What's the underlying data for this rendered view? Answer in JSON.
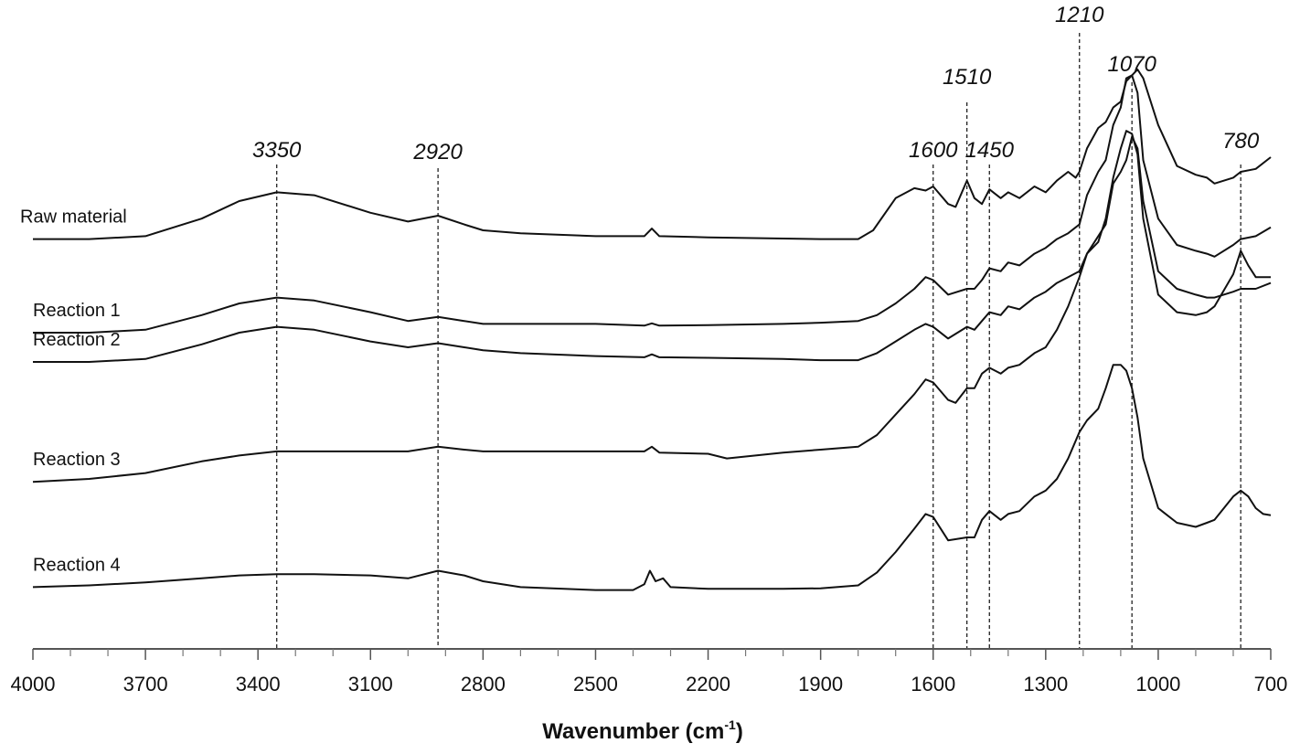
{
  "chart_data": {
    "type": "line",
    "title": "",
    "xlabel": "Wavenumber (cm",
    "xlabel_sup": "-1",
    "xlabel_close": ")",
    "ylabel": "",
    "x_reversed": true,
    "xlim": [
      4000,
      700
    ],
    "x_ticks": [
      4000,
      3700,
      3400,
      3100,
      2800,
      2500,
      2200,
      1900,
      1600,
      1300,
      1000,
      700
    ],
    "x_tick_labels": [
      "4000",
      "3700",
      "3400",
      "3100",
      "2800",
      "2500",
      "2200",
      "1900",
      "1600",
      "1300",
      "1000",
      "700"
    ],
    "ylim": [
      0,
      1
    ],
    "grid": false,
    "legend": "none",
    "peak_markers": [
      {
        "x": 3350,
        "label": "3350"
      },
      {
        "x": 2920,
        "label": "2920"
      },
      {
        "x": 1600,
        "label": "1600"
      },
      {
        "x": 1510,
        "label": "1510"
      },
      {
        "x": 1450,
        "label": "1450"
      },
      {
        "x": 1210,
        "label": "1210"
      },
      {
        "x": 1070,
        "label": "1070"
      },
      {
        "x": 780,
        "label": "780"
      }
    ],
    "series": [
      {
        "name": "Raw material",
        "points": [
          [
            4000,
            0.685
          ],
          [
            3850,
            0.685
          ],
          [
            3700,
            0.69
          ],
          [
            3550,
            0.72
          ],
          [
            3450,
            0.75
          ],
          [
            3350,
            0.765
          ],
          [
            3250,
            0.76
          ],
          [
            3100,
            0.73
          ],
          [
            3000,
            0.715
          ],
          [
            2920,
            0.725
          ],
          [
            2850,
            0.71
          ],
          [
            2800,
            0.7
          ],
          [
            2700,
            0.695
          ],
          [
            2500,
            0.69
          ],
          [
            2370,
            0.69
          ],
          [
            2350,
            0.703
          ],
          [
            2330,
            0.69
          ],
          [
            2200,
            0.688
          ],
          [
            2000,
            0.686
          ],
          [
            1900,
            0.685
          ],
          [
            1800,
            0.685
          ],
          [
            1760,
            0.7
          ],
          [
            1700,
            0.755
          ],
          [
            1650,
            0.772
          ],
          [
            1620,
            0.768
          ],
          [
            1600,
            0.775
          ],
          [
            1560,
            0.745
          ],
          [
            1540,
            0.74
          ],
          [
            1510,
            0.785
          ],
          [
            1490,
            0.755
          ],
          [
            1470,
            0.745
          ],
          [
            1450,
            0.77
          ],
          [
            1420,
            0.755
          ],
          [
            1400,
            0.765
          ],
          [
            1370,
            0.755
          ],
          [
            1330,
            0.775
          ],
          [
            1300,
            0.765
          ],
          [
            1270,
            0.785
          ],
          [
            1240,
            0.8
          ],
          [
            1220,
            0.79
          ],
          [
            1210,
            0.8
          ],
          [
            1190,
            0.84
          ],
          [
            1160,
            0.875
          ],
          [
            1140,
            0.885
          ],
          [
            1120,
            0.91
          ],
          [
            1100,
            0.92
          ],
          [
            1085,
            0.955
          ],
          [
            1070,
            0.965
          ],
          [
            1055,
            0.975
          ],
          [
            1040,
            0.96
          ],
          [
            1000,
            0.88
          ],
          [
            950,
            0.81
          ],
          [
            900,
            0.795
          ],
          [
            870,
            0.79
          ],
          [
            850,
            0.78
          ],
          [
            800,
            0.79
          ],
          [
            780,
            0.8
          ],
          [
            740,
            0.805
          ],
          [
            700,
            0.825
          ]
        ]
      },
      {
        "name": "Reaction 1",
        "points": [
          [
            4000,
            0.525
          ],
          [
            3850,
            0.525
          ],
          [
            3700,
            0.53
          ],
          [
            3550,
            0.555
          ],
          [
            3450,
            0.575
          ],
          [
            3350,
            0.585
          ],
          [
            3250,
            0.58
          ],
          [
            3100,
            0.56
          ],
          [
            3000,
            0.545
          ],
          [
            2920,
            0.552
          ],
          [
            2850,
            0.545
          ],
          [
            2800,
            0.54
          ],
          [
            2700,
            0.54
          ],
          [
            2500,
            0.54
          ],
          [
            2370,
            0.537
          ],
          [
            2350,
            0.541
          ],
          [
            2330,
            0.537
          ],
          [
            2200,
            0.538
          ],
          [
            2000,
            0.54
          ],
          [
            1900,
            0.542
          ],
          [
            1800,
            0.545
          ],
          [
            1750,
            0.555
          ],
          [
            1700,
            0.575
          ],
          [
            1650,
            0.6
          ],
          [
            1620,
            0.62
          ],
          [
            1600,
            0.615
          ],
          [
            1560,
            0.59
          ],
          [
            1510,
            0.6
          ],
          [
            1490,
            0.6
          ],
          [
            1470,
            0.615
          ],
          [
            1450,
            0.635
          ],
          [
            1420,
            0.63
          ],
          [
            1400,
            0.645
          ],
          [
            1370,
            0.64
          ],
          [
            1330,
            0.66
          ],
          [
            1300,
            0.67
          ],
          [
            1270,
            0.685
          ],
          [
            1240,
            0.695
          ],
          [
            1210,
            0.71
          ],
          [
            1190,
            0.76
          ],
          [
            1160,
            0.8
          ],
          [
            1140,
            0.82
          ],
          [
            1120,
            0.88
          ],
          [
            1100,
            0.91
          ],
          [
            1085,
            0.96
          ],
          [
            1070,
            0.965
          ],
          [
            1055,
            0.935
          ],
          [
            1040,
            0.82
          ],
          [
            1000,
            0.72
          ],
          [
            950,
            0.675
          ],
          [
            900,
            0.665
          ],
          [
            870,
            0.66
          ],
          [
            850,
            0.655
          ],
          [
            800,
            0.675
          ],
          [
            780,
            0.685
          ],
          [
            740,
            0.69
          ],
          [
            700,
            0.705
          ]
        ]
      },
      {
        "name": "Reaction 2",
        "points": [
          [
            4000,
            0.475
          ],
          [
            3850,
            0.475
          ],
          [
            3700,
            0.48
          ],
          [
            3550,
            0.505
          ],
          [
            3450,
            0.525
          ],
          [
            3350,
            0.535
          ],
          [
            3250,
            0.53
          ],
          [
            3100,
            0.51
          ],
          [
            3000,
            0.5
          ],
          [
            2920,
            0.507
          ],
          [
            2850,
            0.5
          ],
          [
            2800,
            0.495
          ],
          [
            2700,
            0.49
          ],
          [
            2500,
            0.485
          ],
          [
            2370,
            0.483
          ],
          [
            2350,
            0.488
          ],
          [
            2330,
            0.483
          ],
          [
            2200,
            0.482
          ],
          [
            2000,
            0.48
          ],
          [
            1900,
            0.478
          ],
          [
            1800,
            0.478
          ],
          [
            1750,
            0.49
          ],
          [
            1700,
            0.51
          ],
          [
            1650,
            0.53
          ],
          [
            1620,
            0.54
          ],
          [
            1600,
            0.535
          ],
          [
            1560,
            0.515
          ],
          [
            1510,
            0.535
          ],
          [
            1490,
            0.53
          ],
          [
            1470,
            0.545
          ],
          [
            1450,
            0.56
          ],
          [
            1420,
            0.555
          ],
          [
            1400,
            0.57
          ],
          [
            1370,
            0.565
          ],
          [
            1330,
            0.585
          ],
          [
            1300,
            0.595
          ],
          [
            1270,
            0.61
          ],
          [
            1240,
            0.62
          ],
          [
            1210,
            0.63
          ],
          [
            1190,
            0.66
          ],
          [
            1160,
            0.69
          ],
          [
            1140,
            0.71
          ],
          [
            1120,
            0.78
          ],
          [
            1100,
            0.8
          ],
          [
            1085,
            0.82
          ],
          [
            1070,
            0.86
          ],
          [
            1055,
            0.84
          ],
          [
            1040,
            0.75
          ],
          [
            1000,
            0.63
          ],
          [
            950,
            0.6
          ],
          [
            900,
            0.59
          ],
          [
            870,
            0.585
          ],
          [
            850,
            0.585
          ],
          [
            800,
            0.595
          ],
          [
            780,
            0.6
          ],
          [
            740,
            0.6
          ],
          [
            700,
            0.61
          ]
        ]
      },
      {
        "name": "Reaction 3",
        "points": [
          [
            4000,
            0.27
          ],
          [
            3850,
            0.275
          ],
          [
            3700,
            0.285
          ],
          [
            3550,
            0.305
          ],
          [
            3450,
            0.315
          ],
          [
            3350,
            0.322
          ],
          [
            3250,
            0.322
          ],
          [
            3100,
            0.322
          ],
          [
            3000,
            0.322
          ],
          [
            2920,
            0.33
          ],
          [
            2850,
            0.325
          ],
          [
            2800,
            0.322
          ],
          [
            2700,
            0.322
          ],
          [
            2500,
            0.322
          ],
          [
            2370,
            0.322
          ],
          [
            2350,
            0.33
          ],
          [
            2330,
            0.32
          ],
          [
            2200,
            0.318
          ],
          [
            2150,
            0.31
          ],
          [
            2000,
            0.32
          ],
          [
            1900,
            0.325
          ],
          [
            1800,
            0.33
          ],
          [
            1750,
            0.35
          ],
          [
            1700,
            0.385
          ],
          [
            1650,
            0.42
          ],
          [
            1620,
            0.445
          ],
          [
            1600,
            0.44
          ],
          [
            1560,
            0.41
          ],
          [
            1540,
            0.405
          ],
          [
            1510,
            0.43
          ],
          [
            1490,
            0.43
          ],
          [
            1470,
            0.455
          ],
          [
            1450,
            0.465
          ],
          [
            1420,
            0.455
          ],
          [
            1400,
            0.465
          ],
          [
            1370,
            0.47
          ],
          [
            1330,
            0.49
          ],
          [
            1300,
            0.5
          ],
          [
            1270,
            0.53
          ],
          [
            1240,
            0.57
          ],
          [
            1210,
            0.62
          ],
          [
            1190,
            0.66
          ],
          [
            1160,
            0.68
          ],
          [
            1140,
            0.72
          ],
          [
            1120,
            0.79
          ],
          [
            1100,
            0.84
          ],
          [
            1085,
            0.87
          ],
          [
            1070,
            0.865
          ],
          [
            1055,
            0.83
          ],
          [
            1040,
            0.72
          ],
          [
            1000,
            0.59
          ],
          [
            950,
            0.56
          ],
          [
            900,
            0.555
          ],
          [
            870,
            0.56
          ],
          [
            850,
            0.57
          ],
          [
            800,
            0.625
          ],
          [
            780,
            0.665
          ],
          [
            760,
            0.64
          ],
          [
            740,
            0.62
          ],
          [
            700,
            0.62
          ]
        ]
      },
      {
        "name": "Reaction 4",
        "points": [
          [
            4000,
            0.09
          ],
          [
            3850,
            0.093
          ],
          [
            3700,
            0.098
          ],
          [
            3550,
            0.105
          ],
          [
            3450,
            0.11
          ],
          [
            3350,
            0.112
          ],
          [
            3250,
            0.112
          ],
          [
            3100,
            0.11
          ],
          [
            3000,
            0.105
          ],
          [
            2920,
            0.118
          ],
          [
            2850,
            0.11
          ],
          [
            2800,
            0.1
          ],
          [
            2700,
            0.09
          ],
          [
            2500,
            0.085
          ],
          [
            2400,
            0.085
          ],
          [
            2370,
            0.095
          ],
          [
            2355,
            0.118
          ],
          [
            2340,
            0.1
          ],
          [
            2320,
            0.105
          ],
          [
            2300,
            0.09
          ],
          [
            2200,
            0.087
          ],
          [
            2000,
            0.087
          ],
          [
            1900,
            0.088
          ],
          [
            1800,
            0.093
          ],
          [
            1750,
            0.115
          ],
          [
            1700,
            0.15
          ],
          [
            1650,
            0.19
          ],
          [
            1620,
            0.215
          ],
          [
            1600,
            0.21
          ],
          [
            1560,
            0.17
          ],
          [
            1510,
            0.175
          ],
          [
            1490,
            0.175
          ],
          [
            1470,
            0.205
          ],
          [
            1450,
            0.22
          ],
          [
            1420,
            0.205
          ],
          [
            1400,
            0.215
          ],
          [
            1370,
            0.22
          ],
          [
            1330,
            0.245
          ],
          [
            1300,
            0.255
          ],
          [
            1270,
            0.275
          ],
          [
            1240,
            0.31
          ],
          [
            1210,
            0.355
          ],
          [
            1190,
            0.375
          ],
          [
            1160,
            0.395
          ],
          [
            1140,
            0.43
          ],
          [
            1120,
            0.47
          ],
          [
            1100,
            0.47
          ],
          [
            1085,
            0.46
          ],
          [
            1070,
            0.43
          ],
          [
            1055,
            0.38
          ],
          [
            1040,
            0.31
          ],
          [
            1000,
            0.225
          ],
          [
            950,
            0.2
          ],
          [
            900,
            0.193
          ],
          [
            870,
            0.2
          ],
          [
            850,
            0.205
          ],
          [
            800,
            0.245
          ],
          [
            780,
            0.255
          ],
          [
            760,
            0.245
          ],
          [
            740,
            0.225
          ],
          [
            720,
            0.215
          ],
          [
            700,
            0.213
          ]
        ]
      }
    ]
  }
}
